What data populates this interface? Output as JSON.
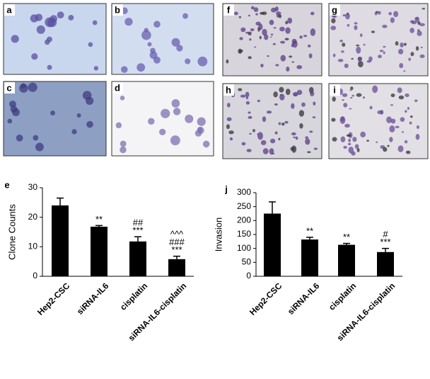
{
  "panels": [
    "a",
    "b",
    "c",
    "d",
    "f",
    "g",
    "h",
    "i"
  ],
  "chart_data": [
    {
      "type": "bar",
      "panel": "e",
      "ylabel": "Clone Counts",
      "categories": [
        "Hep2-CSC",
        "siRNA-IL6",
        "cisplatin",
        "siRNA-IL6-cisplatin"
      ],
      "values": [
        24,
        16.8,
        11.8,
        5.8
      ],
      "errors": [
        2.5,
        0.4,
        1.6,
        1
      ],
      "annotations": [
        null,
        [
          "**"
        ],
        [
          "##",
          "***"
        ],
        [
          "^^^",
          "###",
          "***"
        ]
      ],
      "color": "#000000",
      "ylim": [
        0,
        30
      ],
      "yticks": [
        0,
        10,
        20,
        30
      ]
    },
    {
      "type": "bar",
      "panel": "j",
      "ylabel": "Invasion",
      "categories": [
        "Hep2-CSC",
        "siRNA-IL6",
        "cisplatin",
        "siRNA-IL6-cisplatin"
      ],
      "values": [
        225,
        132,
        113,
        87
      ],
      "errors": [
        42,
        8,
        5,
        13
      ],
      "annotations": [
        null,
        [
          "**"
        ],
        [
          "**"
        ],
        [
          "#",
          "***"
        ]
      ],
      "color": "#000000",
      "ylim": [
        0,
        300
      ],
      "yticks": [
        0,
        50,
        100,
        150,
        200,
        250,
        300
      ]
    }
  ]
}
